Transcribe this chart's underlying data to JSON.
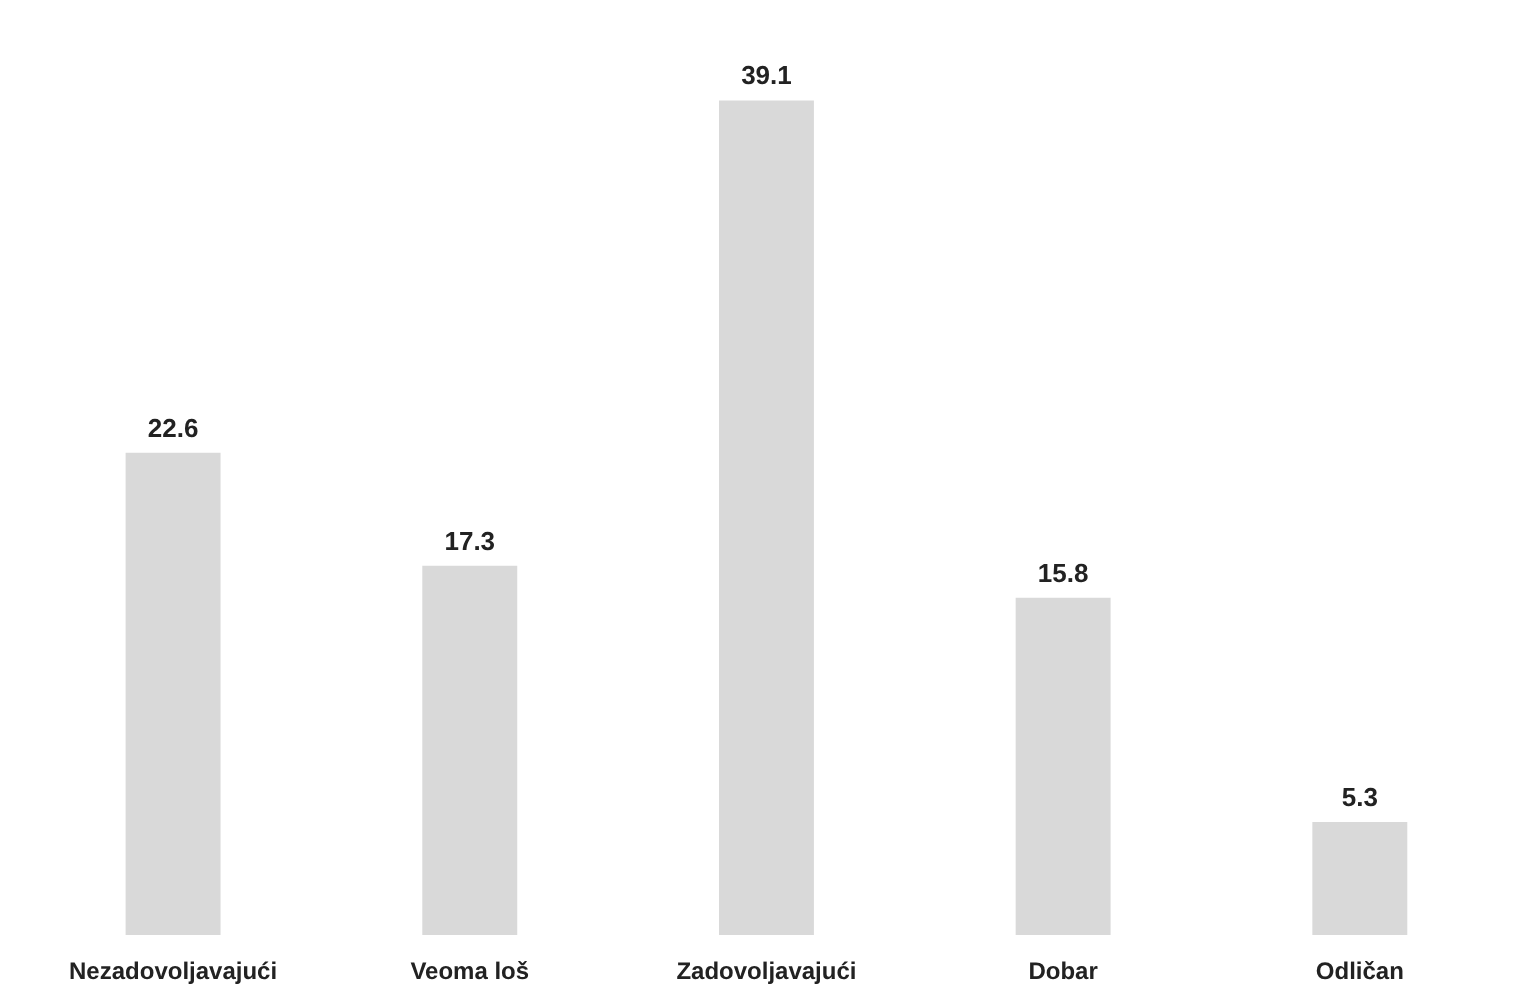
{
  "chart_data": {
    "type": "bar",
    "categories": [
      "Nezadovoljavajući",
      "Veoma loš",
      "Zadovoljavajući",
      "Dobar",
      "Odličan"
    ],
    "values": [
      22.6,
      17.3,
      39.1,
      15.8,
      5.3
    ],
    "color": "#d9d9d9",
    "data_labels": true,
    "grid": false
  }
}
